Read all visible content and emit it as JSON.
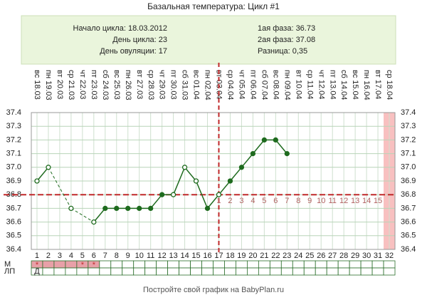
{
  "chart_data": {
    "type": "line",
    "title": "Базальная температура: Цикл #1",
    "info_left": [
      "Начало цикла: 18.03.2012",
      "День цикла: 23",
      "День овуляции: 17"
    ],
    "info_right": [
      "1ая фаза: 36.73",
      "2ая фаза: 37.08",
      "Разница: 0,35"
    ],
    "categories": [
      1,
      2,
      3,
      4,
      5,
      6,
      7,
      8,
      9,
      10,
      11,
      12,
      13,
      14,
      15,
      16,
      17,
      18,
      19,
      20,
      21,
      22,
      23,
      24,
      25,
      26,
      27,
      28,
      29,
      30,
      31,
      32
    ],
    "dates": [
      "вс 18.03",
      "пн 19.03",
      "вт 20.03",
      "ср 21.03",
      "чт 22.03",
      "пт 23.03",
      "сб 24.03",
      "вс 25.03",
      "пн 26.03",
      "вт 27.03",
      "ср 28.03",
      "чт 29.03",
      "пт 30.03",
      "сб 31.03",
      "вс 01.04",
      "пн 02.04",
      "вт 03.04",
      "ср 04.04",
      "чт 05.04",
      "пт 06.04",
      "сб 07.04",
      "вс 08.04",
      "пн 09.04",
      "вт 10.04",
      "ср 11.04",
      "чт 12.04",
      "пт 13.04",
      "сб 14.04",
      "вс 15.04",
      "пн 16.04",
      "вт 17.04",
      "ср 18.04"
    ],
    "series": [
      {
        "name": "Температура",
        "color": "#1e6b1e",
        "values": [
          36.9,
          37.0,
          null,
          36.7,
          null,
          36.6,
          36.7,
          36.7,
          36.7,
          36.7,
          36.7,
          36.8,
          36.8,
          37.0,
          36.9,
          36.7,
          36.8,
          36.9,
          37.0,
          37.1,
          37.2,
          37.2,
          37.1,
          null,
          null,
          null,
          null,
          null,
          null,
          null,
          null,
          null
        ],
        "hollow": [
          true,
          true,
          false,
          true,
          false,
          true,
          false,
          false,
          false,
          false,
          false,
          false,
          true,
          true,
          true,
          false,
          true,
          false,
          false,
          false,
          false,
          false,
          false,
          false,
          false,
          false,
          false,
          false,
          false,
          false,
          false,
          false
        ]
      }
    ],
    "coverline": 36.8,
    "coverline_color": "#c0282a",
    "ovulation_day": 17,
    "luteal_days": [
      1,
      2,
      3,
      4,
      5,
      6,
      7,
      8,
      9,
      10,
      11,
      12,
      13,
      14,
      15
    ],
    "highlight_day": 32,
    "ylim": [
      36.4,
      37.4
    ],
    "yticks": [
      36.4,
      36.5,
      36.6,
      36.7,
      36.8,
      36.9,
      {
        "value": 37.0,
        "label": "37.0"
      },
      37.1,
      37.2,
      37.3,
      37.4
    ],
    "grid": true,
    "row_labels": [
      "М",
      "ЛП"
    ],
    "m_row": [
      "*",
      null,
      null,
      null,
      "*",
      "*",
      null,
      null,
      null,
      null,
      null,
      null,
      null,
      null,
      null,
      null,
      null,
      null,
      null,
      null,
      null,
      null,
      null,
      null,
      null,
      null,
      null,
      null,
      null,
      null,
      null,
      null
    ],
    "m_days": 6,
    "lp_row": [
      "Д",
      null,
      null,
      null,
      null,
      null,
      null,
      null,
      null,
      null,
      null,
      null,
      null,
      null,
      null,
      null,
      null,
      null,
      null,
      null,
      null,
      null,
      null,
      null,
      null,
      null,
      null,
      null,
      null,
      null,
      null,
      null
    ],
    "footer": "Постройте свой график на BabyPlan.ru"
  }
}
